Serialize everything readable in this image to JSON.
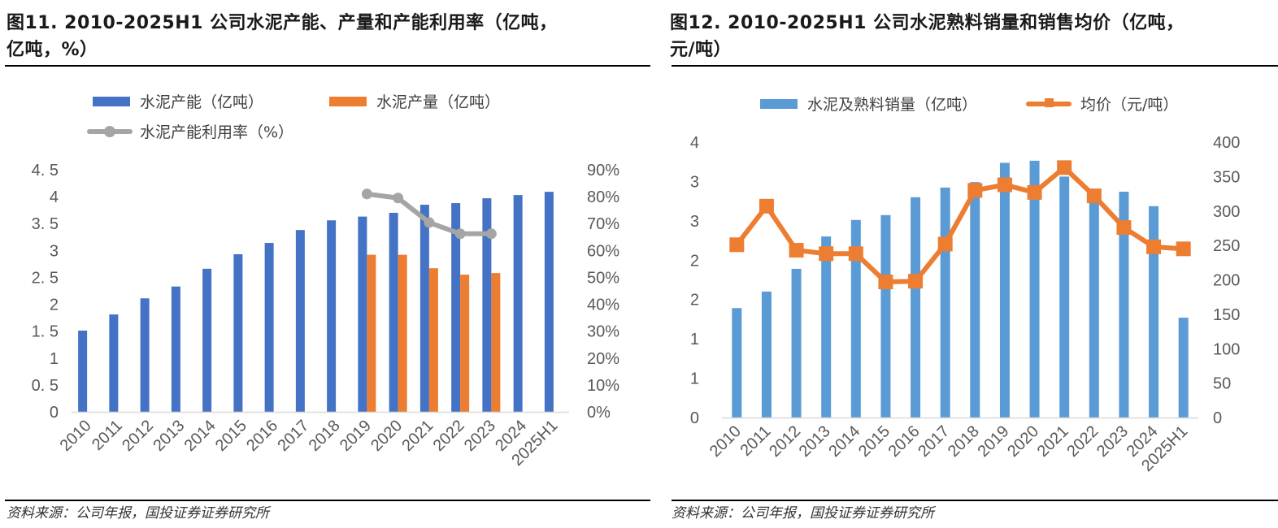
{
  "figures": [
    {
      "title_line1": "图11. 2010-2025H1 公司水泥产能、产量和产能利用率（亿吨，",
      "title_line2": "亿吨，%）",
      "source": "资料来源：公司年报，国投证券证券研究所"
    },
    {
      "title_line1": "图12. 2010-2025H1 公司水泥熟料销量和销售均价（亿吨，",
      "title_line2": "元/吨）",
      "source": "资料来源：公司年报，国投证券证券研究所"
    }
  ],
  "chart_data": [
    {
      "type": "bar",
      "title": "2010-2025H1 公司水泥产能、产量和产能利用率（亿吨，亿吨，%）",
      "categories": [
        "2010",
        "2011",
        "2012",
        "2013",
        "2014",
        "2015",
        "2016",
        "2017",
        "2018",
        "2019",
        "2020",
        "2021",
        "2022",
        "2023",
        "2024",
        "2025H1"
      ],
      "series": [
        {
          "name": "水泥产能（亿吨）",
          "kind": "bar",
          "axis": "left",
          "color": "#4472C4",
          "values": [
            1.51,
            1.81,
            2.11,
            2.33,
            2.66,
            2.93,
            3.14,
            3.38,
            3.56,
            3.63,
            3.7,
            3.85,
            3.88,
            3.97,
            4.03,
            4.09
          ]
        },
        {
          "name": "水泥产量（亿吨）",
          "kind": "bar",
          "axis": "left",
          "color": "#ED7D31",
          "values": [
            null,
            null,
            null,
            null,
            null,
            null,
            null,
            null,
            null,
            2.92,
            2.92,
            2.67,
            2.55,
            2.58,
            null,
            null
          ]
        },
        {
          "name": "水泥产能利用率（%）",
          "kind": "line",
          "marker": "circle",
          "axis": "right",
          "color": "#A5A5A5",
          "values": [
            null,
            null,
            null,
            null,
            null,
            null,
            null,
            null,
            null,
            81,
            79.5,
            70.4,
            66.2,
            66.2,
            null,
            null
          ]
        }
      ],
      "left_axis": {
        "ylim": [
          0,
          4.5
        ],
        "ticks": [
          "0",
          "0. 5",
          "1",
          "1. 5",
          "2",
          "2. 5",
          "3",
          "3. 5",
          "4",
          "4. 5"
        ]
      },
      "right_axis": {
        "ylim": [
          0,
          90
        ],
        "ticks": [
          "0%",
          "10%",
          "20%",
          "30%",
          "40%",
          "50%",
          "60%",
          "70%",
          "80%",
          "90%"
        ]
      },
      "legend_position": "top",
      "grid": false
    },
    {
      "type": "bar",
      "title": "2010-2025H1 公司水泥熟料销量和销售均价（亿吨，元/吨）",
      "categories": [
        "2010",
        "2011",
        "2012",
        "2013",
        "2014",
        "2015",
        "2016",
        "2017",
        "2018",
        "2019",
        "2020",
        "2021",
        "2022",
        "2023",
        "2024",
        "2025H1"
      ],
      "series": [
        {
          "name": "水泥及熟料销量（亿吨）",
          "kind": "bar",
          "axis": "left",
          "color": "#5B9BD5",
          "values": [
            1.59,
            1.83,
            2.16,
            2.63,
            2.87,
            2.94,
            3.2,
            3.34,
            3.42,
            3.7,
            3.73,
            3.5,
            3.28,
            3.28,
            3.07,
            1.45
          ]
        },
        {
          "name": "均价（元/吨）",
          "kind": "line",
          "marker": "square",
          "axis": "right",
          "color": "#ED7D31",
          "values": [
            251,
            307,
            243,
            238,
            238,
            197,
            198,
            252,
            330,
            338,
            327,
            363,
            322,
            276,
            248,
            245
          ]
        }
      ],
      "left_axis": {
        "ylim": [
          0,
          4
        ],
        "ticks": [
          "0",
          "1",
          "1",
          "2",
          "2",
          "3",
          "3",
          "4"
        ]
      },
      "right_axis": {
        "ylim": [
          0,
          400
        ],
        "ticks": [
          "0",
          "50",
          "100",
          "150",
          "200",
          "250",
          "300",
          "350",
          "400"
        ]
      },
      "legend_position": "top",
      "grid": false
    }
  ]
}
